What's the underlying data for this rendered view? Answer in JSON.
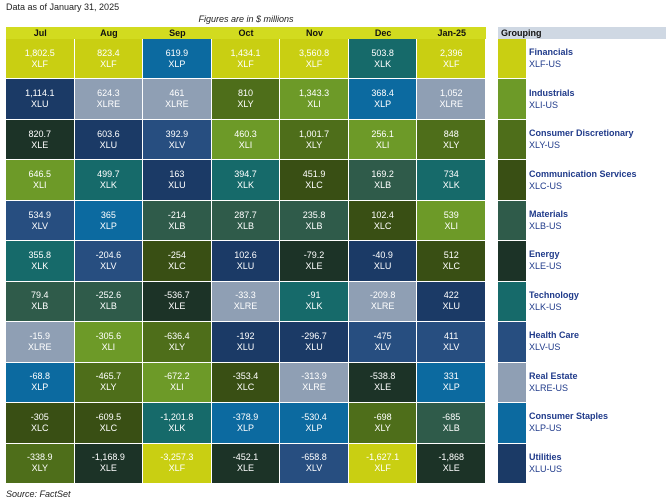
{
  "header": {
    "as_of": "Data as of January 31, 2025",
    "units_note": "Figures are in $ millions"
  },
  "footer": {
    "source": "Source: FactSet"
  },
  "legend": {
    "title": "Grouping",
    "items": [
      {
        "code": "XLF",
        "name": "Financials",
        "label": "XLF-US",
        "color": "#c9cf12"
      },
      {
        "code": "XLI",
        "name": "Industrials",
        "label": "XLI-US",
        "color": "#6d9a28"
      },
      {
        "code": "XLY",
        "name": "Consumer Discretionary",
        "label": "XLY-US",
        "color": "#4e6e1a"
      },
      {
        "code": "XLC",
        "name": "Communication Services",
        "label": "XLC-US",
        "color": "#394f14"
      },
      {
        "code": "XLB",
        "name": "Materials",
        "label": "XLB-US",
        "color": "#2f5b4a"
      },
      {
        "code": "XLE",
        "name": "Energy",
        "label": "XLE-US",
        "color": "#1c3327"
      },
      {
        "code": "XLK",
        "name": "Technology",
        "label": "XLK-US",
        "color": "#166a6a"
      },
      {
        "code": "XLV",
        "name": "Health Care",
        "label": "XLV-US",
        "color": "#274e80"
      },
      {
        "code": "XLRE",
        "name": "Real Estate",
        "label": "XLRE-US",
        "color": "#8f9fb4"
      },
      {
        "code": "XLP",
        "name": "Consumer Staples",
        "label": "XLP-US",
        "color": "#0c6aa0"
      },
      {
        "code": "XLU",
        "name": "Utilities",
        "label": "XLU-US",
        "color": "#1b3a66"
      }
    ]
  },
  "chart_data": {
    "type": "table",
    "title": "",
    "units": "Figures are in $ millions",
    "columns": [
      "Jul",
      "Aug",
      "Sep",
      "Oct",
      "Nov",
      "Dec",
      "Jan-25"
    ],
    "cells": [
      [
        {
          "v": "1,802.5",
          "t": "XLF"
        },
        {
          "v": "823.4",
          "t": "XLF"
        },
        {
          "v": "619.9",
          "t": "XLP"
        },
        {
          "v": "1,434.1",
          "t": "XLF"
        },
        {
          "v": "3,560.8",
          "t": "XLF"
        },
        {
          "v": "503.8",
          "t": "XLK"
        },
        {
          "v": "2,396",
          "t": "XLF"
        }
      ],
      [
        {
          "v": "1,114.1",
          "t": "XLU"
        },
        {
          "v": "624.3",
          "t": "XLRE"
        },
        {
          "v": "461",
          "t": "XLRE"
        },
        {
          "v": "810",
          "t": "XLY"
        },
        {
          "v": "1,343.3",
          "t": "XLI"
        },
        {
          "v": "368.4",
          "t": "XLP"
        },
        {
          "v": "1,052",
          "t": "XLRE"
        }
      ],
      [
        {
          "v": "820.7",
          "t": "XLE"
        },
        {
          "v": "603.6",
          "t": "XLU"
        },
        {
          "v": "392.9",
          "t": "XLV"
        },
        {
          "v": "460.3",
          "t": "XLI"
        },
        {
          "v": "1,001.7",
          "t": "XLY"
        },
        {
          "v": "256.1",
          "t": "XLI"
        },
        {
          "v": "848",
          "t": "XLY"
        }
      ],
      [
        {
          "v": "646.5",
          "t": "XLI"
        },
        {
          "v": "499.7",
          "t": "XLK"
        },
        {
          "v": "163",
          "t": "XLU"
        },
        {
          "v": "394.7",
          "t": "XLK"
        },
        {
          "v": "451.9",
          "t": "XLC"
        },
        {
          "v": "169.2",
          "t": "XLB"
        },
        {
          "v": "734",
          "t": "XLK"
        }
      ],
      [
        {
          "v": "534.9",
          "t": "XLV"
        },
        {
          "v": "365",
          "t": "XLP"
        },
        {
          "v": "-214",
          "t": "XLB"
        },
        {
          "v": "287.7",
          "t": "XLB"
        },
        {
          "v": "235.8",
          "t": "XLB"
        },
        {
          "v": "102.4",
          "t": "XLC"
        },
        {
          "v": "539",
          "t": "XLI"
        }
      ],
      [
        {
          "v": "355.8",
          "t": "XLK"
        },
        {
          "v": "-204.6",
          "t": "XLV"
        },
        {
          "v": "-254",
          "t": "XLC"
        },
        {
          "v": "102.6",
          "t": "XLU"
        },
        {
          "v": "-79.2",
          "t": "XLE"
        },
        {
          "v": "-40.9",
          "t": "XLU"
        },
        {
          "v": "512",
          "t": "XLC"
        }
      ],
      [
        {
          "v": "79.4",
          "t": "XLB"
        },
        {
          "v": "-252.6",
          "t": "XLB"
        },
        {
          "v": "-536.7",
          "t": "XLE"
        },
        {
          "v": "-33.3",
          "t": "XLRE"
        },
        {
          "v": "-91",
          "t": "XLK"
        },
        {
          "v": "-209.8",
          "t": "XLRE"
        },
        {
          "v": "422",
          "t": "XLU"
        }
      ],
      [
        {
          "v": "-15.9",
          "t": "XLRE"
        },
        {
          "v": "-305.6",
          "t": "XLI"
        },
        {
          "v": "-636.4",
          "t": "XLY"
        },
        {
          "v": "-192",
          "t": "XLU"
        },
        {
          "v": "-296.7",
          "t": "XLU"
        },
        {
          "v": "-475",
          "t": "XLV"
        },
        {
          "v": "411",
          "t": "XLV"
        }
      ],
      [
        {
          "v": "-68.8",
          "t": "XLP"
        },
        {
          "v": "-465.7",
          "t": "XLY"
        },
        {
          "v": "-672.2",
          "t": "XLI"
        },
        {
          "v": "-353.4",
          "t": "XLC"
        },
        {
          "v": "-313.9",
          "t": "XLRE"
        },
        {
          "v": "-538.8",
          "t": "XLE"
        },
        {
          "v": "331",
          "t": "XLP"
        }
      ],
      [
        {
          "v": "-305",
          "t": "XLC"
        },
        {
          "v": "-609.5",
          "t": "XLC"
        },
        {
          "v": "-1,201.8",
          "t": "XLK"
        },
        {
          "v": "-378.9",
          "t": "XLP"
        },
        {
          "v": "-530.4",
          "t": "XLP"
        },
        {
          "v": "-698",
          "t": "XLY"
        },
        {
          "v": "-685",
          "t": "XLB"
        }
      ],
      [
        {
          "v": "-338.9",
          "t": "XLY"
        },
        {
          "v": "-1,168.9",
          "t": "XLE"
        },
        {
          "v": "-3,257.3",
          "t": "XLF"
        },
        {
          "v": "-452.1",
          "t": "XLE"
        },
        {
          "v": "-658.8",
          "t": "XLV"
        },
        {
          "v": "-1,627.1",
          "t": "XLF"
        },
        {
          "v": "-1,868",
          "t": "XLE"
        }
      ]
    ]
  }
}
